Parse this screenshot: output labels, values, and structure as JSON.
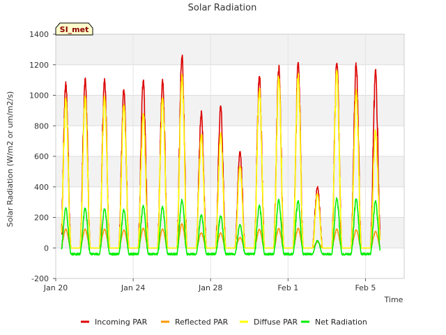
{
  "chart_data": {
    "type": "line",
    "title": "Solar Radiation",
    "xlabel": "Time",
    "ylabel": "Solar Radiation (W/m2 or um/m2/s)",
    "station_label": "SI_met",
    "xlim": [
      0,
      18
    ],
    "ylim": [
      -200,
      1400
    ],
    "yticks": [
      -200,
      0,
      200,
      400,
      600,
      800,
      1000,
      1200,
      1400
    ],
    "xticks": [
      {
        "value": 0,
        "label": "Jan 20"
      },
      {
        "value": 4,
        "label": "Jan 24"
      },
      {
        "value": 8,
        "label": "Jan 28"
      },
      {
        "value": 12,
        "label": "Feb 1"
      },
      {
        "value": 16,
        "label": "Feb 5"
      }
    ],
    "x_units": "days since Jan 20",
    "series": [
      {
        "name": "Incoming PAR",
        "color": "#dd0000",
        "daily_peaks": [
          1090,
          1125,
          1110,
          1060,
          1120,
          1115,
          1280,
          900,
          935,
          645,
          1145,
          1210,
          1225,
          410,
          1240,
          1230,
          1180
        ]
      },
      {
        "name": "Reflected PAR",
        "color": "#ff9900",
        "daily_peaks": [
          125,
          125,
          125,
          120,
          130,
          125,
          160,
          100,
          100,
          70,
          125,
          130,
          130,
          40,
          125,
          120,
          110
        ]
      },
      {
        "name": "Diffuse PAR",
        "color": "#ffff00",
        "daily_peaks": [
          990,
          1000,
          1010,
          950,
          900,
          1000,
          1140,
          760,
          760,
          550,
          1060,
          1140,
          1150,
          360,
          1180,
          1040,
          780
        ]
      },
      {
        "name": "Net Radiation",
        "color": "#00ee00",
        "daily_peaks": [
          265,
          265,
          265,
          255,
          285,
          275,
          320,
          220,
          215,
          155,
          285,
          320,
          315,
          50,
          335,
          330,
          315
        ],
        "night_value": -40
      }
    ]
  }
}
